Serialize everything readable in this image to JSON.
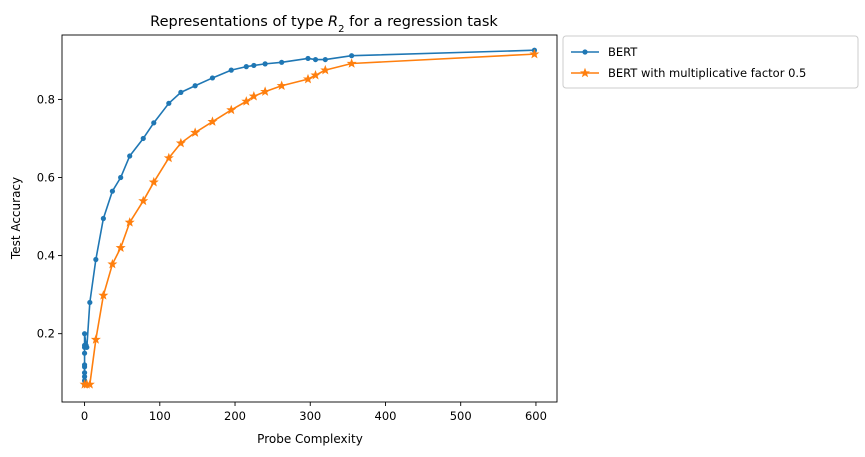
{
  "chart_data": {
    "type": "line",
    "title_prefix": "Representations of type ",
    "title_math_base": "R",
    "title_math_sub": "2",
    "title_suffix": " for a regression task",
    "xlabel": "Probe Complexity",
    "ylabel": "Test Accuracy",
    "xlim": [
      -30,
      628
    ],
    "ylim": [
      0.025,
      0.965
    ],
    "xticks": [
      0,
      100,
      200,
      300,
      400,
      500,
      600
    ],
    "yticks": [
      0.2,
      0.4,
      0.6,
      0.8
    ],
    "ytick_labels": [
      "0.2",
      "0.4",
      "0.6",
      "0.8"
    ],
    "grid": false,
    "legend_position": "outside-top-right",
    "series": [
      {
        "name": "BERT",
        "color": "#1f77b4",
        "marker": "circle",
        "x": [
          0,
          0,
          0,
          0,
          0,
          0,
          0,
          0,
          0,
          0,
          2,
          3,
          7,
          15,
          25,
          37,
          48,
          60,
          78,
          92,
          112,
          128,
          147,
          170,
          195,
          215,
          225,
          240,
          262,
          297,
          307,
          320,
          355,
          598
        ],
        "y": [
          0.07,
          0.08,
          0.09,
          0.1,
          0.115,
          0.12,
          0.15,
          0.165,
          0.17,
          0.2,
          0.17,
          0.165,
          0.28,
          0.39,
          0.495,
          0.565,
          0.6,
          0.655,
          0.7,
          0.74,
          0.79,
          0.818,
          0.835,
          0.855,
          0.875,
          0.884,
          0.887,
          0.891,
          0.895,
          0.905,
          0.902,
          0.902,
          0.912,
          0.926
        ]
      },
      {
        "name": "BERT with multiplicative factor 0.5",
        "color": "#ff7f0e",
        "marker": "star",
        "x": [
          0,
          3,
          7,
          15,
          25,
          37,
          48,
          60,
          78,
          92,
          112,
          128,
          147,
          170,
          195,
          215,
          225,
          240,
          262,
          297,
          307,
          320,
          355,
          598
        ],
        "y": [
          0.07,
          0.07,
          0.07,
          0.185,
          0.298,
          0.378,
          0.42,
          0.485,
          0.54,
          0.588,
          0.65,
          0.688,
          0.715,
          0.743,
          0.773,
          0.795,
          0.808,
          0.82,
          0.835,
          0.852,
          0.862,
          0.875,
          0.892,
          0.916
        ]
      }
    ]
  }
}
